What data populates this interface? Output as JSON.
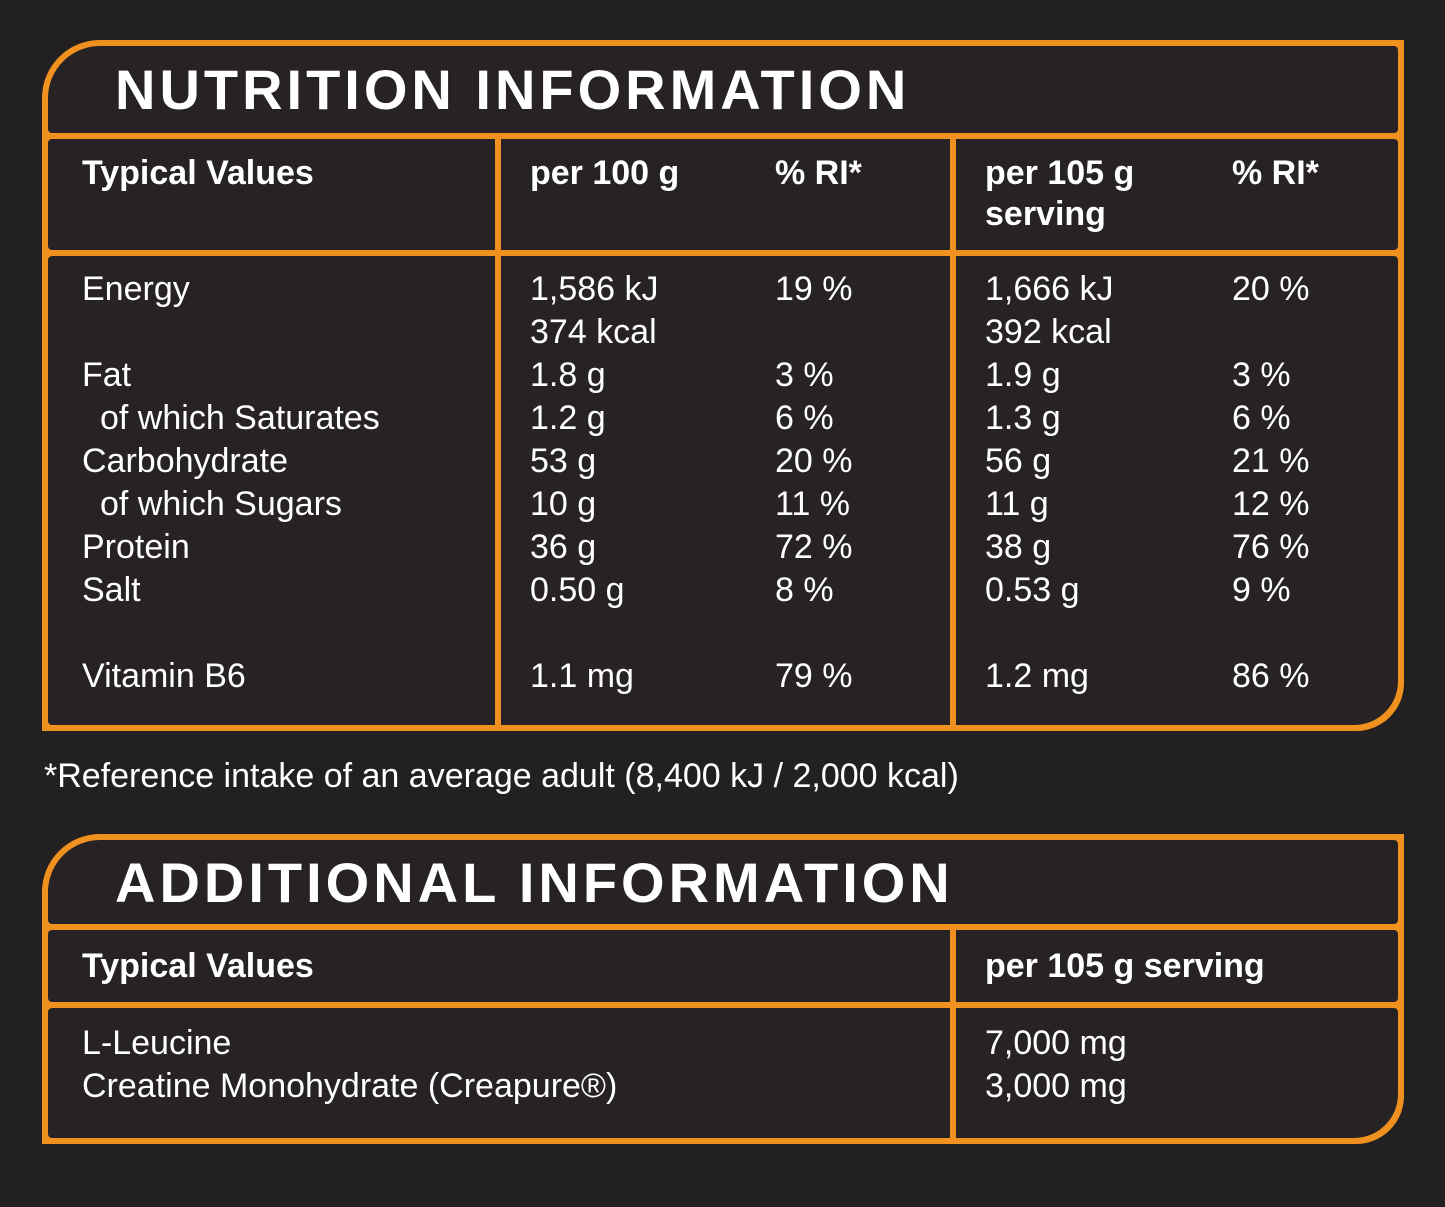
{
  "theme": {
    "page_background": "#232021",
    "cell_background": "#272324",
    "accent_orange": "#F0911F",
    "text_color": "#FFFFFF"
  },
  "nutrition_table": {
    "title": "NUTRITION INFORMATION",
    "header": {
      "typical_values": "Typical Values",
      "per_100g": "per 100 g",
      "ri_100": "% RI*",
      "per_105g": "per 105 g serving",
      "ri_105": "% RI*"
    },
    "rows": [
      {
        "label": "Energy",
        "indent": false,
        "spacer_before": false,
        "per100_value": "1,586 kJ\n374 kcal",
        "per100_ri": "19 %",
        "per105_value": "1,666 kJ\n392 kcal",
        "per105_ri": "20 %"
      },
      {
        "label": "Fat",
        "indent": false,
        "spacer_before": false,
        "per100_value": "1.8 g",
        "per100_ri": "3 %",
        "per105_value": "1.9 g",
        "per105_ri": "3 %"
      },
      {
        "label": "of which Saturates",
        "indent": true,
        "spacer_before": false,
        "per100_value": "1.2 g",
        "per100_ri": "6 %",
        "per105_value": "1.3 g",
        "per105_ri": "6 %"
      },
      {
        "label": "Carbohydrate",
        "indent": false,
        "spacer_before": false,
        "per100_value": "53 g",
        "per100_ri": "20 %",
        "per105_value": "56 g",
        "per105_ri": "21 %"
      },
      {
        "label": "of which Sugars",
        "indent": true,
        "spacer_before": false,
        "per100_value": "10 g",
        "per100_ri": "11 %",
        "per105_value": "11 g",
        "per105_ri": "12 %"
      },
      {
        "label": "Protein",
        "indent": false,
        "spacer_before": false,
        "per100_value": "36 g",
        "per100_ri": "72 %",
        "per105_value": "38 g",
        "per105_ri": "76 %"
      },
      {
        "label": "Salt",
        "indent": false,
        "spacer_before": false,
        "per100_value": "0.50 g",
        "per100_ri": "8 %",
        "per105_value": "0.53 g",
        "per105_ri": "9 %"
      },
      {
        "label": "Vitamin B6",
        "indent": false,
        "spacer_before": true,
        "per100_value": "1.1 mg",
        "per100_ri": "79 %",
        "per105_value": "1.2 mg",
        "per105_ri": "86 %"
      }
    ],
    "footnote": "*Reference intake of an average adult (8,400 kJ / 2,000 kcal)"
  },
  "additional_table": {
    "title": "ADDITIONAL INFORMATION",
    "header": {
      "typical_values": "Typical Values",
      "per_105g": "per 105 g serving"
    },
    "rows": [
      {
        "label": "L-Leucine",
        "value": "7,000 mg"
      },
      {
        "label": "Creatine Monohydrate (Creapure®)",
        "value": "3,000 mg"
      }
    ]
  }
}
